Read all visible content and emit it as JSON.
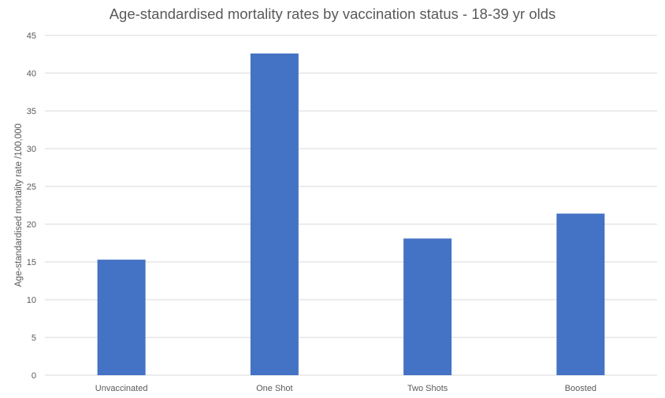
{
  "chart_data": {
    "type": "bar",
    "title": "Age-standardised mortality rates by vaccination status - 18-39 yr olds",
    "xlabel": "",
    "ylabel": "Age-standardised mortality rate /100,000",
    "categories": [
      "Unvaccinated",
      "One Shot",
      "Two Shots",
      "Boosted"
    ],
    "values": [
      15.3,
      42.6,
      18.1,
      21.4
    ],
    "ylim": [
      0,
      45
    ],
    "yticks": [
      "0",
      "5",
      "10",
      "15",
      "20",
      "25",
      "30",
      "35",
      "40",
      "45"
    ],
    "grid": true,
    "legend": "none",
    "bar_color": "#4472C4",
    "grid_color": "#D9D9D9"
  }
}
